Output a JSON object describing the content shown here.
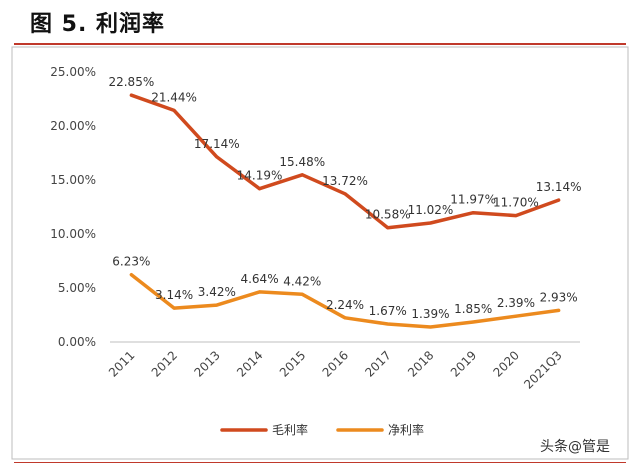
{
  "header": {
    "title": "图 5. 利润率"
  },
  "watermark": "头条@管是",
  "chart_data": {
    "type": "line",
    "title": "",
    "xlabel": "",
    "ylabel": "",
    "categories": [
      "2011",
      "2012",
      "2013",
      "2014",
      "2015",
      "2016",
      "2017",
      "2018",
      "2019",
      "2020",
      "2021Q3"
    ],
    "ylim": [
      0,
      25
    ],
    "yticks": [
      "0.00%",
      "5.00%",
      "10.00%",
      "15.00%",
      "20.00%",
      "25.00%"
    ],
    "grid": false,
    "legend_position": "bottom",
    "series": [
      {
        "name": "毛利率",
        "color": "#d04a1e",
        "values": [
          22.85,
          21.44,
          17.14,
          14.19,
          15.48,
          13.72,
          10.58,
          11.02,
          11.97,
          11.7,
          13.14
        ],
        "labels": [
          "22.85%",
          "21.44%",
          "17.14%",
          "14.19%",
          "15.48%",
          "13.72%",
          "10.58%",
          "11.02%",
          "11.97%",
          "11.70%",
          "13.14%"
        ]
      },
      {
        "name": "净利率",
        "color": "#ec8a1e",
        "values": [
          6.23,
          3.14,
          3.42,
          4.64,
          4.42,
          2.24,
          1.67,
          1.39,
          1.85,
          2.39,
          2.93
        ],
        "labels": [
          "6.23%",
          "3.14%",
          "3.42%",
          "4.64%",
          "4.42%",
          "2.24%",
          "1.67%",
          "1.39%",
          "1.85%",
          "2.39%",
          "2.93%"
        ]
      }
    ]
  }
}
